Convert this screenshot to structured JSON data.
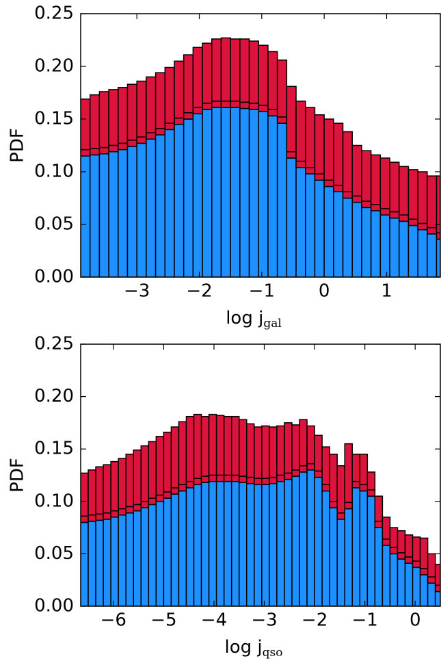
{
  "chart_data": [
    {
      "type": "histogram",
      "stacked": true,
      "ylabel": "PDF",
      "xlabel": "log j",
      "xlabel_sub": "gal",
      "bins": [
        -3.9,
        -3.75,
        -3.6,
        -3.45,
        -3.3,
        -3.15,
        -3.0,
        -2.85,
        -2.7,
        -2.55,
        -2.4,
        -2.25,
        -2.1,
        -1.95,
        -1.8,
        -1.65,
        -1.5,
        -1.35,
        -1.2,
        -1.05,
        -0.9,
        -0.75,
        -0.6,
        -0.45,
        -0.3,
        -0.15,
        0,
        0.15,
        0.3,
        0.45,
        0.6,
        0.75,
        0.9,
        1.05,
        1.2,
        1.35,
        1.5,
        1.65,
        1.8,
        1.95
      ],
      "series": [
        {
          "color": "#1e90ff",
          "values": [
            0.115,
            0.116,
            0.117,
            0.119,
            0.121,
            0.124,
            0.127,
            0.131,
            0.135,
            0.14,
            0.145,
            0.15,
            0.155,
            0.159,
            0.161,
            0.161,
            0.161,
            0.16,
            0.159,
            0.157,
            0.153,
            0.146,
            0.113,
            0.104,
            0.098,
            0.092,
            0.086,
            0.081,
            0.075,
            0.071,
            0.066,
            0.063,
            0.059,
            0.056,
            0.053,
            0.049,
            0.045,
            0.041,
            0.036
          ]
        },
        {
          "color": "#dc143c",
          "values": [
            0.006,
            0.006,
            0.006,
            0.006,
            0.006,
            0.006,
            0.006,
            0.006,
            0.006,
            0.006,
            0.006,
            0.006,
            0.006,
            0.006,
            0.006,
            0.006,
            0.006,
            0.006,
            0.006,
            0.006,
            0.006,
            0.006,
            0.006,
            0.006,
            0.006,
            0.006,
            0.006,
            0.006,
            0.006,
            0.006,
            0.006,
            0.006,
            0.006,
            0.006,
            0.006,
            0.006,
            0.006,
            0.006,
            0.006
          ]
        },
        {
          "color": "#dc143c",
          "values": [
            0.048,
            0.051,
            0.053,
            0.053,
            0.053,
            0.053,
            0.053,
            0.053,
            0.053,
            0.053,
            0.054,
            0.055,
            0.057,
            0.057,
            0.059,
            0.06,
            0.059,
            0.06,
            0.059,
            0.057,
            0.055,
            0.054,
            0.062,
            0.057,
            0.057,
            0.056,
            0.058,
            0.059,
            0.057,
            0.048,
            0.048,
            0.047,
            0.048,
            0.047,
            0.046,
            0.047,
            0.049,
            0.049,
            0.054
          ]
        }
      ],
      "xlim": [
        -3.9,
        1.86
      ],
      "ylim": [
        0,
        0.25
      ],
      "xticks": [
        {
          "value": -3,
          "label": "−3"
        },
        {
          "value": -2,
          "label": "−2"
        },
        {
          "value": -1,
          "label": "−1"
        },
        0,
        1
      ],
      "yticks": [
        {
          "value": 0,
          "label": "0.00"
        },
        {
          "value": 0.05,
          "label": "0.05"
        },
        {
          "value": 0.1,
          "label": "0.10"
        },
        {
          "value": 0.15,
          "label": "0.15"
        },
        {
          "value": 0.2,
          "label": "0.20"
        },
        {
          "value": 0.25,
          "label": "0.25"
        }
      ]
    },
    {
      "type": "histogram",
      "stacked": true,
      "ylabel": "PDF",
      "xlabel": "log j",
      "xlabel_sub": "qso",
      "bins": [
        -6.65,
        -6.5,
        -6.35,
        -6.2,
        -6.05,
        -5.9,
        -5.75,
        -5.6,
        -5.45,
        -5.3,
        -5.15,
        -5.0,
        -4.85,
        -4.7,
        -4.55,
        -4.4,
        -4.25,
        -4.1,
        -3.95,
        -3.8,
        -3.65,
        -3.5,
        -3.35,
        -3.2,
        -3.05,
        -2.9,
        -2.75,
        -2.6,
        -2.45,
        -2.3,
        -2.15,
        -2.0,
        -1.85,
        -1.7,
        -1.55,
        -1.4,
        -1.25,
        -1.1,
        -0.95,
        -0.8,
        -0.65,
        -0.5,
        -0.35,
        -0.2,
        -0.05,
        0.1,
        0.25,
        0.4,
        0.55
      ],
      "series": [
        {
          "color": "#1e90ff",
          "values": [
            0.08,
            0.081,
            0.082,
            0.083,
            0.085,
            0.087,
            0.089,
            0.091,
            0.094,
            0.097,
            0.1,
            0.103,
            0.107,
            0.11,
            0.113,
            0.116,
            0.118,
            0.119,
            0.119,
            0.119,
            0.119,
            0.118,
            0.117,
            0.116,
            0.116,
            0.117,
            0.119,
            0.121,
            0.124,
            0.128,
            0.13,
            0.123,
            0.11,
            0.094,
            0.083,
            0.093,
            0.113,
            0.11,
            0.105,
            0.075,
            0.058,
            0.05,
            0.045,
            0.041,
            0.037,
            0.03,
            0.022,
            0.014
          ]
        },
        {
          "color": "#dc143c",
          "values": [
            0.006,
            0.006,
            0.006,
            0.006,
            0.006,
            0.006,
            0.006,
            0.006,
            0.006,
            0.006,
            0.006,
            0.006,
            0.006,
            0.006,
            0.006,
            0.006,
            0.006,
            0.006,
            0.006,
            0.006,
            0.006,
            0.006,
            0.006,
            0.006,
            0.006,
            0.006,
            0.006,
            0.006,
            0.006,
            0.006,
            0.006,
            0.006,
            0.006,
            0.006,
            0.006,
            0.006,
            0.006,
            0.006,
            0.006,
            0.006,
            0.006,
            0.006,
            0.006,
            0.006,
            0.006,
            0.006,
            0.006,
            0.006
          ]
        },
        {
          "color": "#dc143c",
          "values": [
            0.041,
            0.043,
            0.045,
            0.046,
            0.047,
            0.048,
            0.05,
            0.052,
            0.053,
            0.054,
            0.056,
            0.057,
            0.058,
            0.06,
            0.062,
            0.061,
            0.057,
            0.058,
            0.057,
            0.056,
            0.056,
            0.054,
            0.051,
            0.049,
            0.05,
            0.048,
            0.047,
            0.048,
            0.043,
            0.044,
            0.036,
            0.034,
            0.036,
            0.045,
            0.045,
            0.056,
            0.026,
            0.029,
            0.017,
            0.024,
            0.021,
            0.019,
            0.021,
            0.021,
            0.023,
            0.029,
            0.022,
            0.02
          ]
        }
      ],
      "xlim": [
        -6.65,
        0.5
      ],
      "ylim": [
        0,
        0.25
      ],
      "xticks": [
        {
          "value": -6,
          "label": "−6"
        },
        {
          "value": -5,
          "label": "−5"
        },
        {
          "value": -4,
          "label": "−4"
        },
        {
          "value": -3,
          "label": "−3"
        },
        {
          "value": -2,
          "label": "−2"
        },
        {
          "value": -1,
          "label": "−1"
        },
        0
      ],
      "yticks": [
        {
          "value": 0,
          "label": "0.00"
        },
        {
          "value": 0.05,
          "label": "0.05"
        },
        {
          "value": 0.1,
          "label": "0.10"
        },
        {
          "value": 0.15,
          "label": "0.15"
        },
        {
          "value": 0.2,
          "label": "0.20"
        },
        {
          "value": 0.25,
          "label": "0.25"
        }
      ]
    }
  ]
}
